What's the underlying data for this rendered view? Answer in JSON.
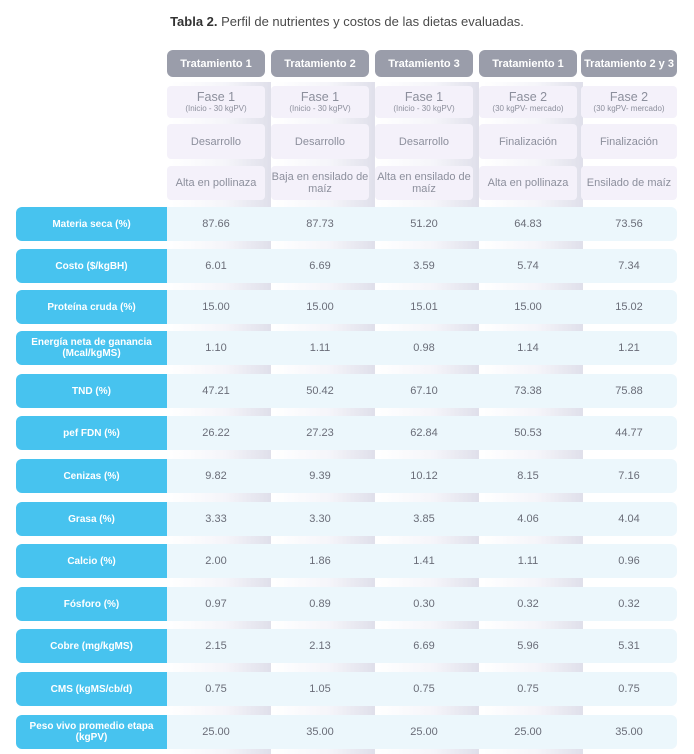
{
  "caption": {
    "label": "Tabla 2.",
    "text": " Perfil de nutrientes y costos de las dietas evaluadas."
  },
  "columns": [
    {
      "tratamiento": "Tratamiento 1",
      "fase": "Fase 1",
      "fase_sub": "(Inicio - 30 kgPV)",
      "etapa": "Desarrollo",
      "dieta": "Alta en pollinaza"
    },
    {
      "tratamiento": "Tratamiento 2",
      "fase": "Fase 1",
      "fase_sub": "(Inicio - 30 kgPV)",
      "etapa": "Desarrollo",
      "dieta": "Baja en ensilado de maíz"
    },
    {
      "tratamiento": "Tratamiento 3",
      "fase": "Fase 1",
      "fase_sub": "(Inicio - 30 kgPV)",
      "etapa": "Desarrollo",
      "dieta": "Alta en ensilado de maíz"
    },
    {
      "tratamiento": "Tratamiento 1",
      "fase": "Fase 2",
      "fase_sub": "(30 kgPV- mercado)",
      "etapa": "Finalización",
      "dieta": "Alta en pollinaza"
    },
    {
      "tratamiento": "Tratamiento 2 y 3",
      "fase": "Fase 2",
      "fase_sub": "(30 kgPV- mercado)",
      "etapa": "Finalización",
      "dieta": "Ensilado de maíz"
    }
  ],
  "rows": [
    {
      "label": "Materia seca (%)",
      "values": [
        "87.66",
        "87.73",
        "51.20",
        "64.83",
        "73.56"
      ]
    },
    {
      "label": "Costo ($/kgBH)",
      "values": [
        "6.01",
        "6.69",
        "3.59",
        "5.74",
        "7.34"
      ]
    },
    {
      "label": "Proteína cruda (%)",
      "values": [
        "15.00",
        "15.00",
        "15.01",
        "15.00",
        "15.02"
      ]
    },
    {
      "label": "Energía neta de ganancia (Mcal/kgMS)",
      "values": [
        "1.10",
        "1.11",
        "0.98",
        "1.14",
        "1.21"
      ]
    },
    {
      "label": "TND (%)",
      "values": [
        "47.21",
        "50.42",
        "67.10",
        "73.38",
        "75.88"
      ]
    },
    {
      "label": "pef FDN (%)",
      "values": [
        "26.22",
        "27.23",
        "62.84",
        "50.53",
        "44.77"
      ]
    },
    {
      "label": "Cenizas (%)",
      "values": [
        "9.82",
        "9.39",
        "10.12",
        "8.15",
        "7.16"
      ]
    },
    {
      "label": "Grasa (%)",
      "values": [
        "3.33",
        "3.30",
        "3.85",
        "4.06",
        "4.04"
      ]
    },
    {
      "label": "Calcio (%)",
      "values": [
        "2.00",
        "1.86",
        "1.41",
        "1.11",
        "0.96"
      ]
    },
    {
      "label": "Fósforo (%)",
      "values": [
        "0.97",
        "0.89",
        "0.30",
        "0.32",
        "0.32"
      ]
    },
    {
      "label": "Cobre (mg/kgMS)",
      "values": [
        "2.15",
        "2.13",
        "6.69",
        "5.96",
        "5.31"
      ]
    },
    {
      "label": "CMS (kgMS/cb/d)",
      "values": [
        "0.75",
        "1.05",
        "0.75",
        "0.75",
        "0.75"
      ]
    },
    {
      "label": "Peso vivo promedio etapa (kgPV)",
      "values": [
        "25.00",
        "35.00",
        "25.00",
        "25.00",
        "35.00"
      ]
    }
  ],
  "colors": {
    "label_bg": "#47c3ef",
    "pill_bg": "#9a9daa",
    "row_bg": "#ecf7fc",
    "header_bg": "#f4f1fa"
  }
}
